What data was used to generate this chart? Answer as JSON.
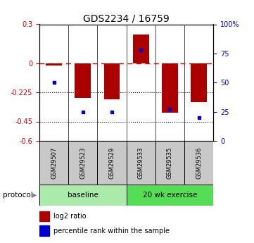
{
  "title": "GDS2234 / 16759",
  "samples": [
    "GSM29507",
    "GSM29523",
    "GSM29529",
    "GSM29533",
    "GSM29535",
    "GSM29536"
  ],
  "log2_ratio": [
    -0.02,
    -0.27,
    -0.28,
    0.22,
    -0.38,
    -0.3
  ],
  "percentile_rank": [
    50,
    25,
    25,
    78,
    27,
    20
  ],
  "ylim_left": [
    -0.6,
    0.3
  ],
  "ylim_right": [
    0,
    100
  ],
  "yticks_left": [
    -0.6,
    -0.45,
    -0.225,
    0.0,
    0.3
  ],
  "ytick_labels_left": [
    "-0.6",
    "-0.45",
    "-0.225",
    "0",
    "0.3"
  ],
  "yticks_right": [
    0,
    25,
    50,
    75,
    100
  ],
  "ytick_labels_right": [
    "0",
    "25",
    "50",
    "75",
    "100%"
  ],
  "hlines_dotted": [
    -0.225,
    -0.45
  ],
  "bar_color": "#aa0000",
  "dot_color": "#0000cc",
  "hline_zero_color": "#cc0000",
  "hline_zero_style": "--",
  "hline_other_color": "#000000",
  "hline_other_style": ":",
  "group_labels": [
    "baseline",
    "20 wk exercise"
  ],
  "group_colors": [
    "#aaeaaa",
    "#55dd55"
  ],
  "group_split": 3,
  "protocol_label": "protocol",
  "legend_bar_label": "log2 ratio",
  "legend_dot_label": "percentile rank within the sample",
  "bar_color_legend": "#aa0000",
  "dot_color_legend": "#0000cc",
  "bg_color": "#ffffff",
  "title_fontsize": 10,
  "tick_fontsize": 7,
  "sample_fontsize": 6,
  "legend_fontsize": 7,
  "protocol_fontsize": 7.5,
  "group_fontsize": 7.5
}
